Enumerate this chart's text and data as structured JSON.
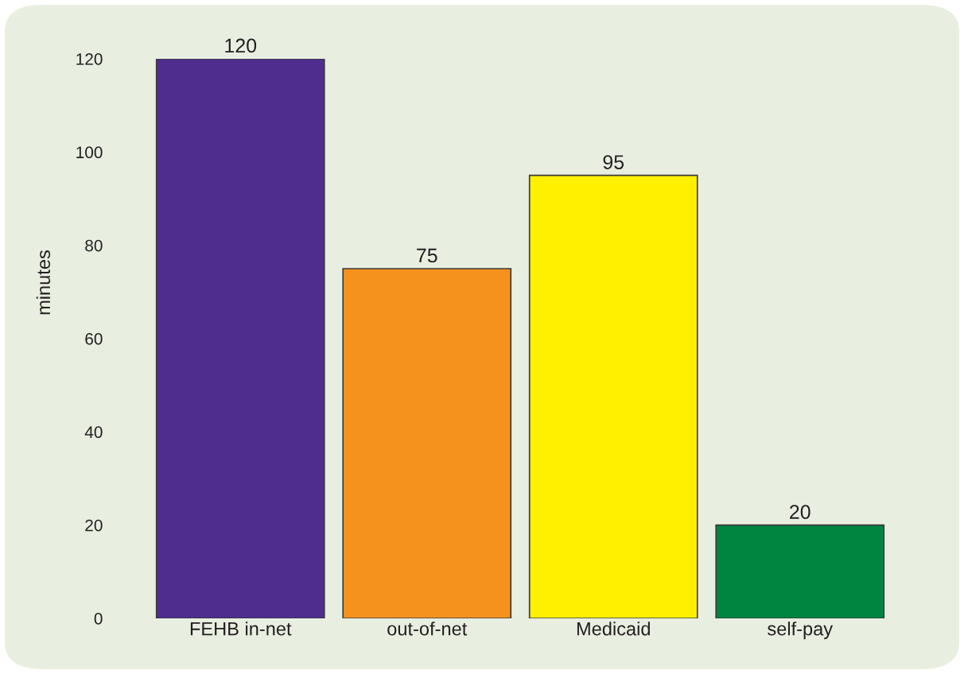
{
  "chart_data": {
    "type": "bar",
    "ylabel": "minutes",
    "categories": [
      "FEHB in-net",
      "out-of-net",
      "Medicaid",
      "self-pay"
    ],
    "values": [
      120,
      75,
      95,
      20
    ],
    "colors": [
      "#4f2d8f",
      "#f5921e",
      "#fff000",
      "#008540"
    ],
    "ylim": [
      0,
      120
    ],
    "yticks": [
      0,
      20,
      40,
      60,
      80,
      100,
      120
    ],
    "data_labels": true,
    "grid": false
  }
}
